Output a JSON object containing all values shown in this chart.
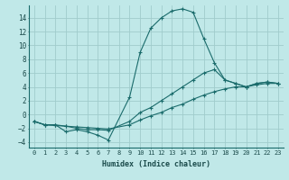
{
  "xlabel": "Humidex (Indice chaleur)",
  "bg_color": "#c0e8e8",
  "grid_color": "#a0cccc",
  "line_color": "#1a6b6b",
  "xlim": [
    -0.5,
    23.5
  ],
  "ylim": [
    -4.8,
    15.8
  ],
  "xticks": [
    0,
    1,
    2,
    3,
    4,
    5,
    6,
    7,
    8,
    9,
    10,
    11,
    12,
    13,
    14,
    15,
    16,
    17,
    18,
    19,
    20,
    21,
    22,
    23
  ],
  "yticks": [
    -4,
    -2,
    0,
    2,
    4,
    6,
    8,
    10,
    12,
    14
  ],
  "line1_x": [
    0,
    1,
    2,
    3,
    4,
    5,
    6,
    7,
    9,
    10,
    11,
    12,
    13,
    14,
    15,
    16,
    17,
    18,
    19,
    20,
    21,
    22,
    23
  ],
  "line1_y": [
    -1.0,
    -1.5,
    -1.5,
    -2.5,
    -2.2,
    -2.5,
    -3.0,
    -3.7,
    2.5,
    9.0,
    12.5,
    14.0,
    15.0,
    15.3,
    14.8,
    11.0,
    7.5,
    5.0,
    4.5,
    4.0,
    4.5,
    4.7,
    4.5
  ],
  "line2_x": [
    0,
    1,
    2,
    3,
    4,
    5,
    6,
    7,
    9,
    10,
    11,
    12,
    13,
    14,
    15,
    16,
    17,
    18,
    19,
    20,
    21,
    22,
    23
  ],
  "line2_y": [
    -1.0,
    -1.5,
    -1.5,
    -1.7,
    -2.0,
    -2.2,
    -2.2,
    -2.3,
    -1.0,
    0.3,
    1.0,
    2.0,
    3.0,
    4.0,
    5.0,
    6.0,
    6.5,
    5.0,
    4.5,
    4.0,
    4.5,
    4.7,
    4.5
  ],
  "line3_x": [
    0,
    1,
    2,
    3,
    4,
    5,
    6,
    7,
    9,
    10,
    11,
    12,
    13,
    14,
    15,
    16,
    17,
    18,
    19,
    20,
    21,
    22,
    23
  ],
  "line3_y": [
    -1.0,
    -1.5,
    -1.6,
    -1.7,
    -1.8,
    -1.9,
    -2.0,
    -2.1,
    -1.5,
    -0.8,
    -0.2,
    0.3,
    1.0,
    1.5,
    2.2,
    2.8,
    3.3,
    3.7,
    4.0,
    4.0,
    4.3,
    4.5,
    4.5
  ]
}
